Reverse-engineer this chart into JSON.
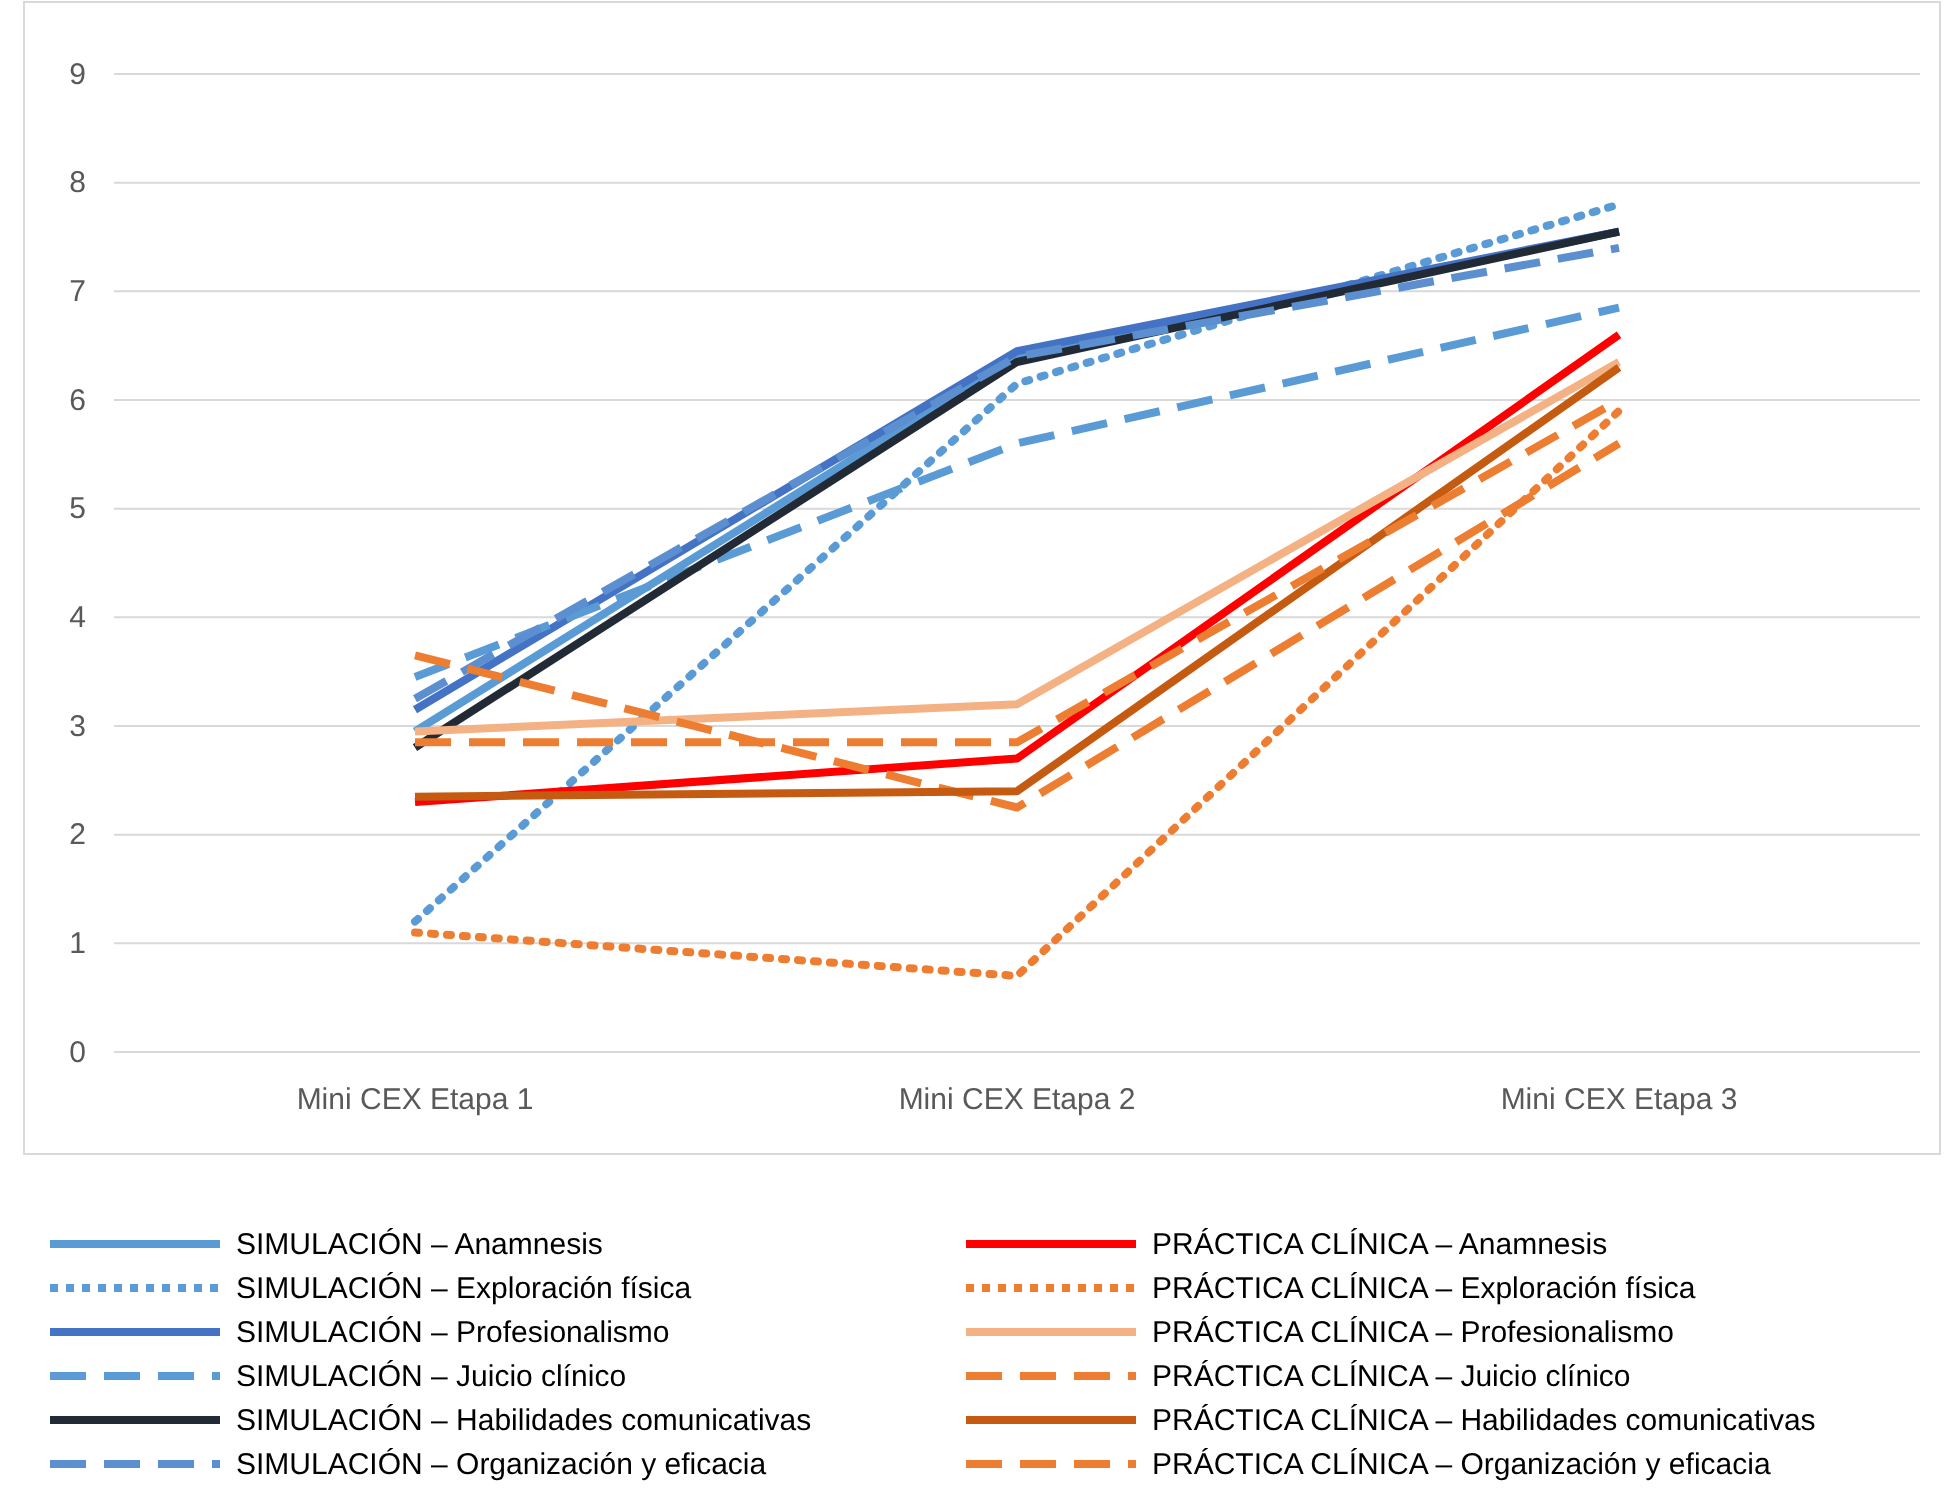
{
  "chart_data": {
    "type": "line",
    "categories": [
      "Mini CEX Etapa 1",
      "Mini CEX Etapa 2",
      "Mini CEX Etapa 3"
    ],
    "ylim": [
      0,
      9
    ],
    "yticks": [
      0,
      1,
      2,
      3,
      4,
      5,
      6,
      7,
      8,
      9
    ],
    "grid": "y",
    "legend": "bottom",
    "marker": "none",
    "series": [
      {
        "name": "SIMULACIÓN – Anamnesis",
        "color": "#5b9bd5",
        "line_style": "solid",
        "values": [
          2.95,
          6.4,
          7.55
        ]
      },
      {
        "name": "SIMULACIÓN – Exploración física",
        "color": "#5b9bd5",
        "line_style": "dotted",
        "values": [
          1.2,
          6.15,
          7.8
        ]
      },
      {
        "name": "SIMULACIÓN – Profesionalismo",
        "color": "#4472c4",
        "line_style": "solid",
        "values": [
          3.15,
          6.45,
          7.55
        ]
      },
      {
        "name": "SIMULACIÓN – Juicio clínico",
        "color": "#5b9bd5",
        "line_style": "dashed",
        "values": [
          3.45,
          5.6,
          6.85
        ]
      },
      {
        "name": "SIMULACIÓN – Habilidades comunicativas",
        "color": "#222a35",
        "line_style": "solid",
        "values": [
          2.8,
          6.35,
          7.55
        ]
      },
      {
        "name": "SIMULACIÓN – Organización y eficacia",
        "color": "#5b8fd0",
        "line_style": "dashed",
        "values": [
          3.25,
          6.4,
          7.4
        ]
      },
      {
        "name": "PRÁCTICA CLÍNICA – Anamnesis",
        "color": "#ff0000",
        "line_style": "solid",
        "values": [
          2.3,
          2.7,
          6.6
        ]
      },
      {
        "name": "PRÁCTICA CLÍNICA – Exploración física",
        "color": "#ed7d31",
        "line_style": "dotted",
        "values": [
          1.1,
          0.7,
          5.9
        ]
      },
      {
        "name": "PRÁCTICA CLÍNICA – Profesionalismo",
        "color": "#f4b183",
        "line_style": "solid",
        "values": [
          2.95,
          3.2,
          6.35
        ]
      },
      {
        "name": "PRÁCTICA CLÍNICA – Juicio clínico",
        "color": "#ed7d31",
        "line_style": "dashed",
        "values": [
          3.65,
          2.25,
          5.6
        ]
      },
      {
        "name": "PRÁCTICA CLÍNICA – Habilidades comunicativas",
        "color": "#c55a11",
        "line_style": "solid",
        "values": [
          2.35,
          2.4,
          6.3
        ]
      },
      {
        "name": "PRÁCTICA CLÍNICA – Organización  y eficacia",
        "color": "#ed7d31",
        "line_style": "dashed",
        "values": [
          2.85,
          2.85,
          6.0
        ]
      }
    ]
  }
}
